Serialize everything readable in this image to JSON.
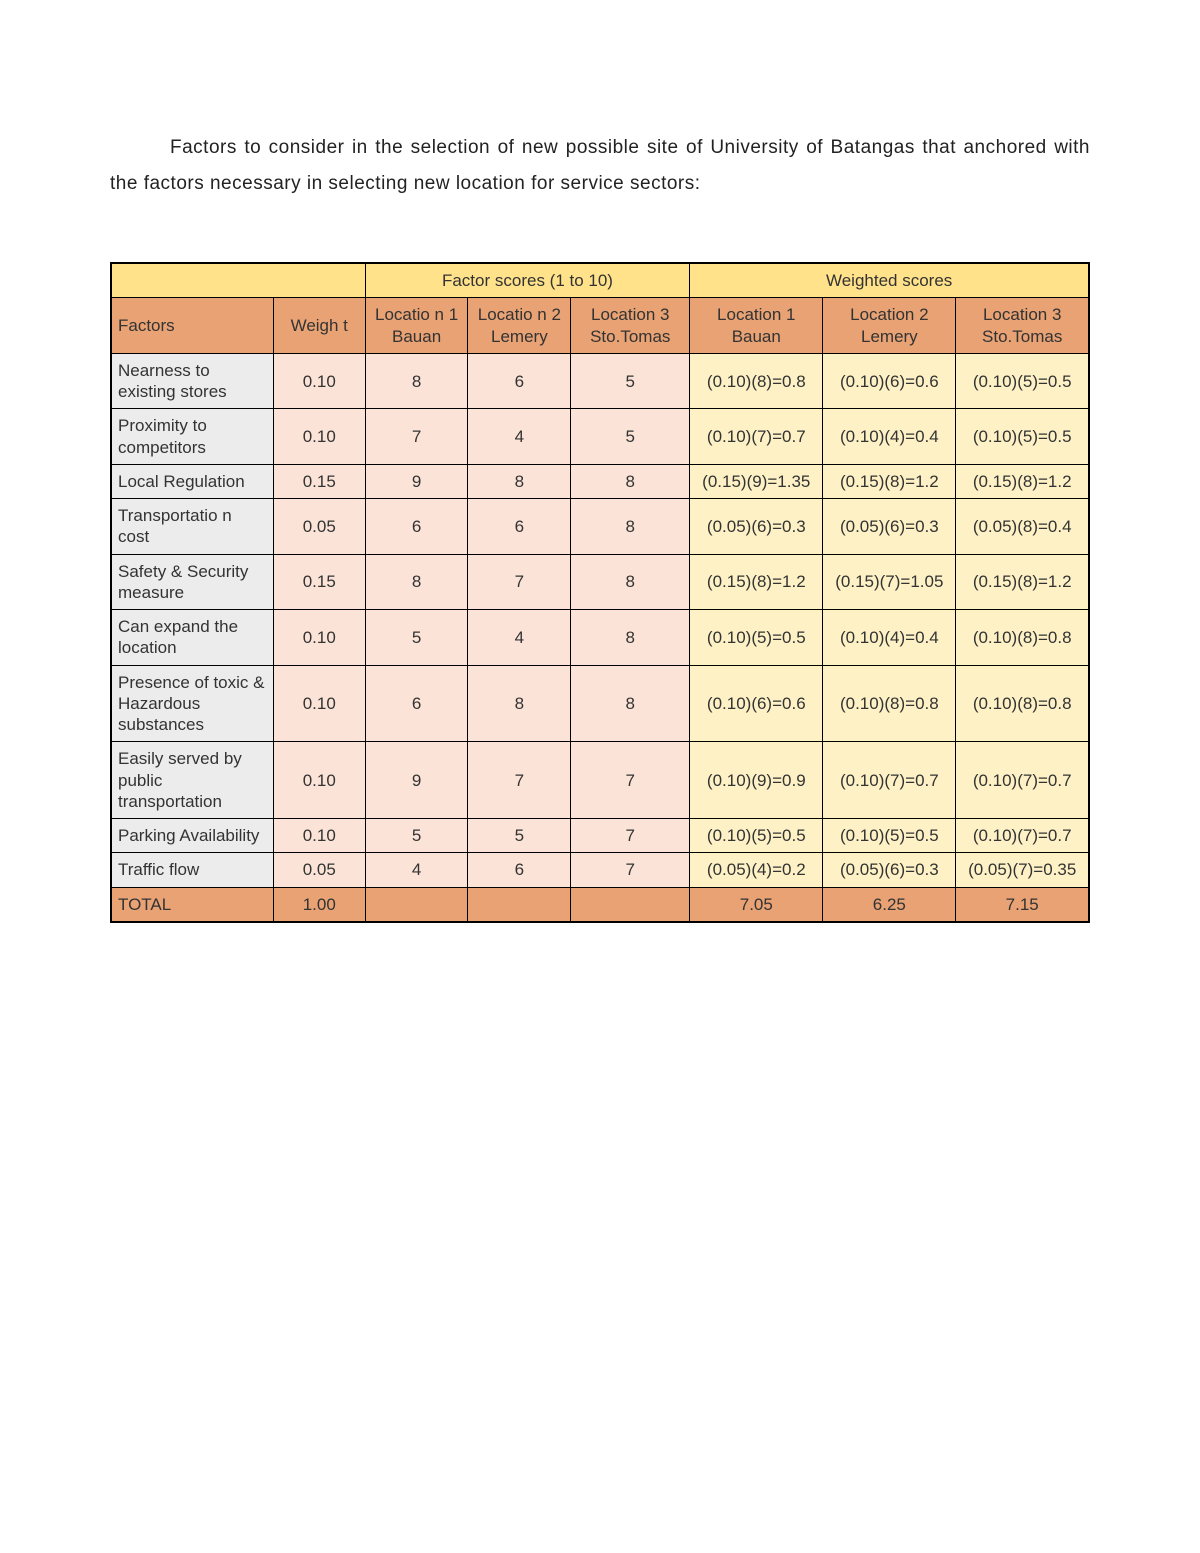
{
  "colors": {
    "page_bg": "#ffffff",
    "text": "#333333",
    "header_yellow": "#ffe28a",
    "header_orange": "#e8a274",
    "factor_bg": "#ececec",
    "score_bg": "#fbe4d7",
    "weighted_bg": "#fdf1c5",
    "border": "#000000"
  },
  "typography": {
    "body_font": "Arial",
    "intro_fontsize_pt": 14,
    "cell_fontsize_pt": 13
  },
  "intro_text": "Factors to consider in the selection of new possible site of University of Batangas that anchored with the factors necessary in selecting new location for service sectors:",
  "table": {
    "group_headers": {
      "blank": "",
      "scores": "Factor scores (1 to 10)",
      "weighted": "Weighted scores"
    },
    "col_headers": {
      "factors": "Factors",
      "weight": "Weigh t",
      "loc1_score": "Locatio n  1 Bauan",
      "loc2_score": "Locatio n 2 Lemery",
      "loc3_score": "Location 3 Sto.Tomas",
      "loc1_ws": "Location 1 Bauan",
      "loc2_ws": "Location 2 Lemery",
      "loc3_ws": "Location 3 Sto.Tomas"
    },
    "rows": [
      {
        "factor": "Nearness to existing stores",
        "weight": "0.10",
        "s1": "8",
        "s2": "6",
        "s3": "5",
        "w1": "(0.10)(8)=0.8",
        "w2": "(0.10)(6)=0.6",
        "w3": "(0.10)(5)=0.5"
      },
      {
        "factor": "Proximity to competitors",
        "weight": "0.10",
        "s1": "7",
        "s2": "4",
        "s3": "5",
        "w1": "(0.10)(7)=0.7",
        "w2": "(0.10)(4)=0.4",
        "w3": "(0.10)(5)=0.5"
      },
      {
        "factor": "Local Regulation",
        "weight": "0.15",
        "s1": "9",
        "s2": "8",
        "s3": "8",
        "w1": "(0.15)(9)=1.35",
        "w2": "(0.15)(8)=1.2",
        "w3": "(0.15)(8)=1.2"
      },
      {
        "factor": "Transportatio n cost",
        "weight": "0.05",
        "s1": "6",
        "s2": "6",
        "s3": "8",
        "w1": "(0.05)(6)=0.3",
        "w2": "(0.05)(6)=0.3",
        "w3": "(0.05)(8)=0.4"
      },
      {
        "factor": "Safety & Security measure",
        "weight": "0.15",
        "s1": "8",
        "s2": "7",
        "s3": "8",
        "w1": "(0.15)(8)=1.2",
        "w2": "(0.15)(7)=1.05",
        "w3": "(0.15)(8)=1.2"
      },
      {
        "factor": "Can expand the location",
        "weight": "0.10",
        "s1": "5",
        "s2": "4",
        "s3": "8",
        "w1": "(0.10)(5)=0.5",
        "w2": "(0.10)(4)=0.4",
        "w3": "(0.10)(8)=0.8"
      },
      {
        "factor": "Presence of toxic & Hazardous substances",
        "weight": "0.10",
        "s1": "6",
        "s2": "8",
        "s3": "8",
        "w1": "(0.10)(6)=0.6",
        "w2": "(0.10)(8)=0.8",
        "w3": "(0.10)(8)=0.8"
      },
      {
        "factor": "Easily served by public transportation",
        "weight": "0.10",
        "s1": "9",
        "s2": "7",
        "s3": "7",
        "w1": "(0.10)(9)=0.9",
        "w2": "(0.10)(7)=0.7",
        "w3": "(0.10)(7)=0.7"
      },
      {
        "factor": "Parking Availability",
        "weight": "0.10",
        "s1": "5",
        "s2": "5",
        "s3": "7",
        "w1": "(0.10)(5)=0.5",
        "w2": "(0.10)(5)=0.5",
        "w3": "(0.10)(7)=0.7"
      },
      {
        "factor": "Traffic flow",
        "weight": "0.05",
        "s1": "4",
        "s2": "6",
        "s3": "7",
        "w1": "(0.05)(4)=0.2",
        "w2": "(0.05)(6)=0.3",
        "w3": "(0.05)(7)=0.35"
      }
    ],
    "total": {
      "label": "TOTAL",
      "weight": "1.00",
      "s1": "",
      "s2": "",
      "s3": "",
      "w1": "7.05",
      "w2": "6.25",
      "w3": "7.15"
    }
  }
}
